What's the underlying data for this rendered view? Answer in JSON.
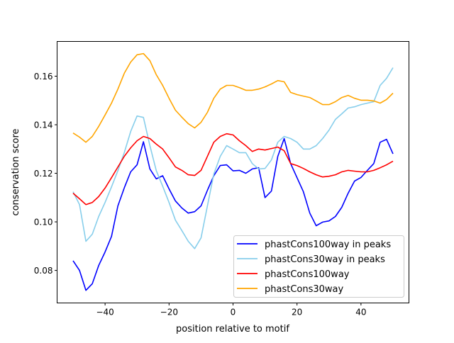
{
  "chart_data": {
    "type": "line",
    "title": "",
    "xlabel": "position relative to motif",
    "ylabel": "conservation score",
    "xlim": [
      -55,
      55
    ],
    "ylim": [
      0.0666,
      0.1743
    ],
    "xticks": [
      -40,
      -20,
      0,
      20,
      40
    ],
    "xtick_labels": [
      "−40",
      "−20",
      "0",
      "20",
      "40"
    ],
    "yticks": [
      0.08,
      0.1,
      0.12,
      0.14,
      0.16
    ],
    "ytick_labels": [
      "0.08",
      "0.10",
      "0.12",
      "0.14",
      "0.16"
    ],
    "grid": false,
    "legend_position": "bottom-right",
    "x": [
      -50,
      -48,
      -46,
      -44,
      -42,
      -40,
      -38,
      -36,
      -34,
      -32,
      -30,
      -28,
      -26,
      -24,
      -22,
      -20,
      -18,
      -16,
      -14,
      -12,
      -10,
      -8,
      -6,
      -4,
      -2,
      0,
      2,
      4,
      6,
      8,
      10,
      12,
      14,
      16,
      18,
      20,
      22,
      24,
      26,
      28,
      30,
      32,
      34,
      36,
      38,
      40,
      42,
      44,
      46,
      48,
      50
    ],
    "series": [
      {
        "name": "phastCons100way in peaks",
        "color": "#0000ff",
        "values": [
          0.084,
          0.08,
          0.0718,
          0.0745,
          0.082,
          0.0876,
          0.094,
          0.1066,
          0.114,
          0.1206,
          0.1235,
          0.133,
          0.1218,
          0.1177,
          0.119,
          0.1136,
          0.1086,
          0.1057,
          0.1036,
          0.1042,
          0.1066,
          0.113,
          0.119,
          0.1232,
          0.1235,
          0.121,
          0.1212,
          0.12,
          0.1218,
          0.1223,
          0.11,
          0.1127,
          0.127,
          0.1343,
          0.124,
          0.1182,
          0.1124,
          0.1036,
          0.0984,
          0.0999,
          0.1004,
          0.1022,
          0.106,
          0.1118,
          0.1168,
          0.1183,
          0.1212,
          0.124,
          0.1328,
          0.134,
          0.128
        ]
      },
      {
        "name": "phastCons30way in peaks",
        "color": "#87ceeb",
        "values": [
          0.1124,
          0.1071,
          0.092,
          0.0949,
          0.1022,
          0.108,
          0.1144,
          0.1211,
          0.1285,
          0.1372,
          0.1436,
          0.143,
          0.1314,
          0.1211,
          0.1147,
          0.108,
          0.1007,
          0.0964,
          0.092,
          0.089,
          0.0934,
          0.1066,
          0.1197,
          0.127,
          0.1314,
          0.13,
          0.1285,
          0.1285,
          0.124,
          0.1218,
          0.122,
          0.1255,
          0.1328,
          0.1352,
          0.1343,
          0.1328,
          0.13,
          0.13,
          0.1314,
          0.1343,
          0.1378,
          0.1422,
          0.1445,
          0.1469,
          0.1474,
          0.1483,
          0.1489,
          0.1495,
          0.1562,
          0.1591,
          0.1635
        ]
      },
      {
        "name": "phastCons100way",
        "color": "#ff0000",
        "values": [
          0.1118,
          0.1095,
          0.1071,
          0.108,
          0.1104,
          0.1139,
          0.1182,
          0.1226,
          0.127,
          0.1305,
          0.1334,
          0.1352,
          0.1343,
          0.132,
          0.13,
          0.1264,
          0.1226,
          0.1212,
          0.1194,
          0.1191,
          0.1212,
          0.127,
          0.1328,
          0.1352,
          0.1363,
          0.1358,
          0.1334,
          0.1314,
          0.129,
          0.13,
          0.1296,
          0.1302,
          0.1308,
          0.1293,
          0.124,
          0.1232,
          0.122,
          0.1206,
          0.1194,
          0.1185,
          0.1188,
          0.1194,
          0.1206,
          0.1212,
          0.1209,
          0.1206,
          0.1206,
          0.1212,
          0.1223,
          0.1235,
          0.125
        ]
      },
      {
        "name": "phastCons30way",
        "color": "#ffa500",
        "values": [
          0.1366,
          0.1349,
          0.1328,
          0.1352,
          0.1393,
          0.144,
          0.1489,
          0.1547,
          0.1612,
          0.1658,
          0.1688,
          0.1693,
          0.1664,
          0.1606,
          0.1562,
          0.1509,
          0.146,
          0.1431,
          0.1404,
          0.1387,
          0.141,
          0.1451,
          0.1509,
          0.1547,
          0.1562,
          0.1562,
          0.1553,
          0.1542,
          0.1542,
          0.1547,
          0.1556,
          0.1568,
          0.1582,
          0.1577,
          0.1533,
          0.1524,
          0.1518,
          0.1512,
          0.1498,
          0.1483,
          0.1483,
          0.1495,
          0.1512,
          0.1521,
          0.1509,
          0.1501,
          0.1501,
          0.1498,
          0.1489,
          0.1504,
          0.153
        ]
      }
    ]
  }
}
